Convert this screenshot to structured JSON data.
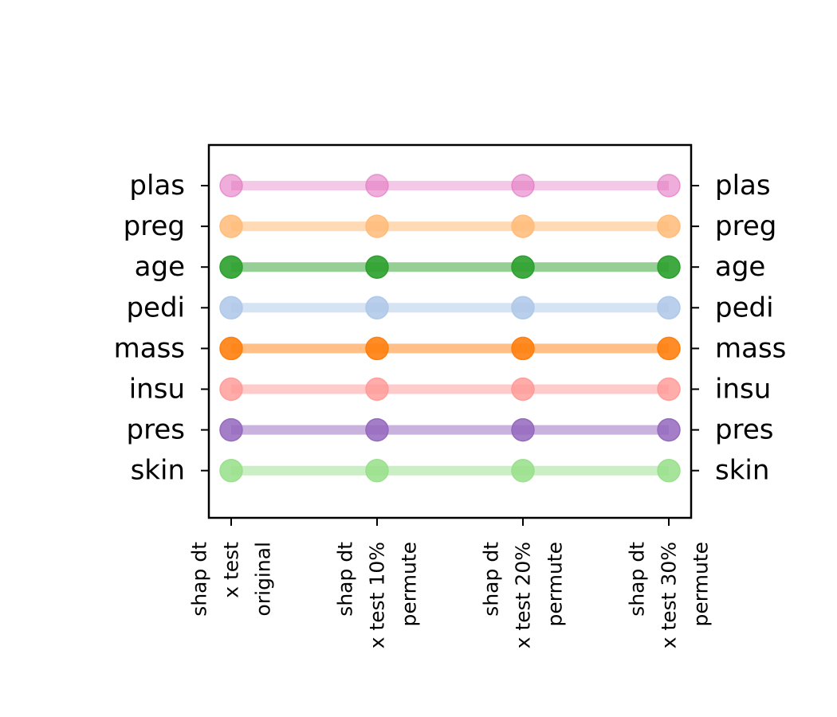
{
  "chart_data": {
    "type": "line",
    "title": "",
    "xlabel": "",
    "ylabel": "",
    "categories": [
      [
        "shap dt",
        "x test",
        "original"
      ],
      [
        "shap dt",
        "x test 10%",
        "permute"
      ],
      [
        "shap dt",
        "x test 20%",
        "permute"
      ],
      [
        "shap dt",
        "x test 30%",
        "permute"
      ]
    ],
    "yticks_left": [
      "plas",
      "preg",
      "age",
      "pedi",
      "mass",
      "insu",
      "pres",
      "skin"
    ],
    "yticks_right": [
      "plas",
      "preg",
      "age",
      "pedi",
      "mass",
      "insu",
      "pres",
      "skin"
    ],
    "series": [
      {
        "name": "plas",
        "values": [
          1,
          1,
          1,
          1
        ],
        "color": "#e377c2",
        "lineAlpha": 0.4,
        "markerAlpha": 0.6
      },
      {
        "name": "preg",
        "values": [
          2,
          2,
          2,
          2
        ],
        "color": "#ffbb78",
        "lineAlpha": 0.55,
        "markerAlpha": 0.85
      },
      {
        "name": "age",
        "values": [
          3,
          3,
          3,
          3
        ],
        "color": "#2ca02c",
        "lineAlpha": 0.5,
        "markerAlpha": 0.9
      },
      {
        "name": "pedi",
        "values": [
          4,
          4,
          4,
          4
        ],
        "color": "#aec7e8",
        "lineAlpha": 0.5,
        "markerAlpha": 0.85
      },
      {
        "name": "mass",
        "values": [
          5,
          5,
          5,
          5
        ],
        "color": "#ff7f0e",
        "lineAlpha": 0.5,
        "markerAlpha": 0.9
      },
      {
        "name": "insu",
        "values": [
          6,
          6,
          6,
          6
        ],
        "color": "#ff9896",
        "lineAlpha": 0.5,
        "markerAlpha": 0.8
      },
      {
        "name": "pres",
        "values": [
          7,
          7,
          7,
          7
        ],
        "color": "#9467bd",
        "lineAlpha": 0.5,
        "markerAlpha": 0.85
      },
      {
        "name": "skin",
        "values": [
          8,
          8,
          8,
          8
        ],
        "color": "#98df8a",
        "lineAlpha": 0.5,
        "markerAlpha": 0.85
      }
    ],
    "y_inverted": true,
    "ylim": [
      0,
      9
    ],
    "grid": false,
    "legend": "none"
  }
}
